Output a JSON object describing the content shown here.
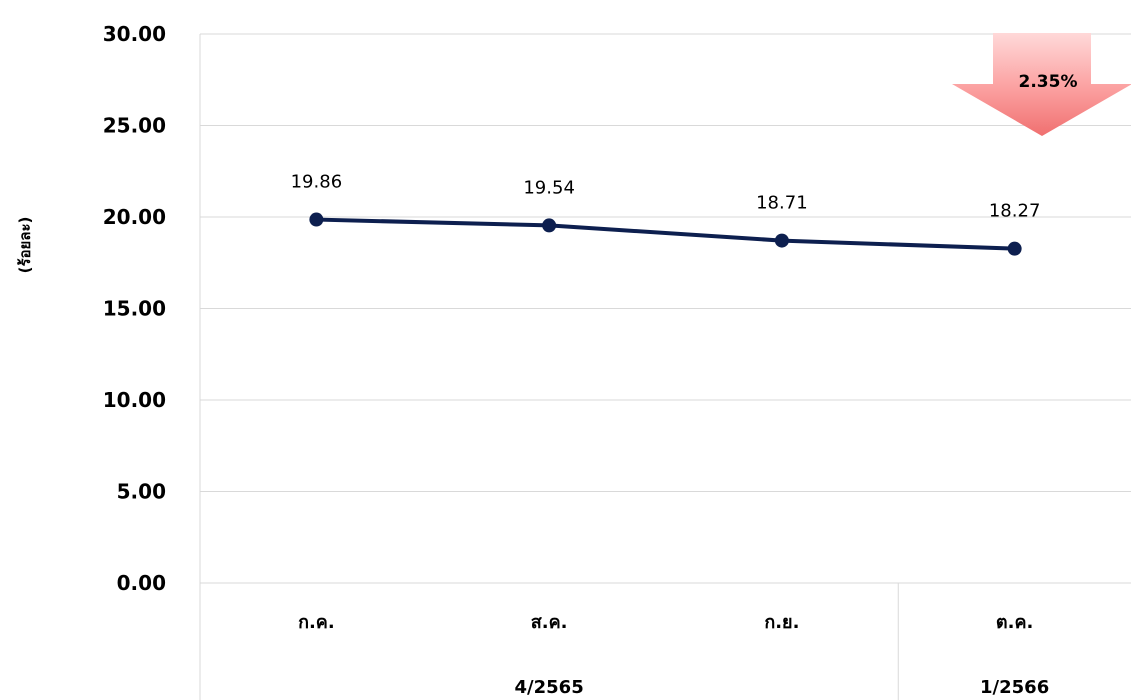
{
  "chart_data": {
    "type": "line",
    "ylabel": "(ร้อยละ)",
    "ylim": [
      0,
      30
    ],
    "yticks": [
      "30.00",
      "25.00",
      "20.00",
      "15.00",
      "10.00",
      "5.00",
      "0.00"
    ],
    "categories": [
      "ก.ค.",
      "ส.ค.",
      "ก.ย.",
      "ต.ค."
    ],
    "groups": [
      {
        "label": "4/2565",
        "span": [
          0,
          2
        ]
      },
      {
        "label": "1/2566",
        "span": [
          3,
          3
        ]
      }
    ],
    "series": [
      {
        "values": [
          19.86,
          19.54,
          18.71,
          18.27
        ],
        "labels": [
          "19.86",
          "19.54",
          "18.71",
          "18.27"
        ],
        "color": "#0d1f4f"
      }
    ],
    "grid": true,
    "annotation": {
      "text": "2.35%",
      "shape": "down-arrow",
      "color": "#f47c7c"
    }
  }
}
